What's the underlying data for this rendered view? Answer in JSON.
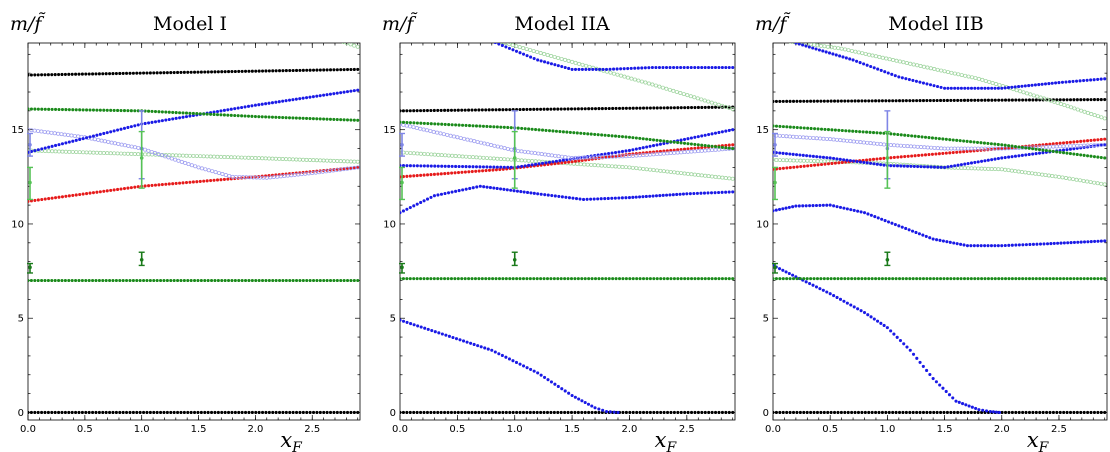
{
  "colors": {
    "black": "#000000",
    "green": "#1a8a1a",
    "blue": "#1a1ae6",
    "red": "#e61a1a",
    "purple": "#8a1a8a",
    "light_blue_open": "#9b9bf0",
    "light_green_open": "#9bd39b",
    "error_lightblue": "#7f86e6",
    "error_lightgreen": "#55c255",
    "error_darkgreen": "#1a7a1a"
  },
  "chart_data": [
    {
      "type": "scatter",
      "title": "Model I",
      "ylabel": "m/f̃",
      "xlabel": "x_F",
      "xlim": [
        0,
        2.92
      ],
      "ylim": [
        -0.4,
        19.6
      ],
      "xticks": [
        0.0,
        0.5,
        1.0,
        1.5,
        2.0,
        2.5
      ],
      "xtick_labels": [
        "0.0",
        "0.5",
        "1.0",
        "1.5",
        "2.0",
        "2.5"
      ],
      "yticks": [
        0,
        5,
        10,
        15
      ],
      "ytick_labels": [
        "0",
        "5",
        "10",
        "15"
      ],
      "series": [
        {
          "color": "black",
          "style": "filled",
          "x": [
            0,
            2.9
          ],
          "y": [
            0,
            0
          ]
        },
        {
          "color": "green",
          "style": "filled",
          "x": [
            0,
            2.9
          ],
          "y": [
            7.0,
            7.0
          ]
        },
        {
          "color": "red",
          "style": "filled",
          "x": [
            0,
            1.0,
            2.0,
            2.9
          ],
          "y": [
            11.2,
            12.0,
            12.5,
            13.0
          ]
        },
        {
          "color": "light_green_open",
          "style": "open",
          "x": [
            0,
            1.0,
            2.0,
            2.9
          ],
          "y": [
            13.9,
            13.7,
            13.5,
            13.3
          ]
        },
        {
          "color": "light_blue_open",
          "style": "open",
          "x": [
            0,
            0.5,
            1.0,
            1.5,
            1.8,
            2.1,
            2.5,
            2.9
          ],
          "y": [
            15.0,
            14.6,
            14.0,
            13.0,
            12.5,
            12.45,
            12.7,
            13.0
          ]
        },
        {
          "color": "blue",
          "style": "filled",
          "x": [
            0,
            1.0,
            2.0,
            2.9
          ],
          "y": [
            13.8,
            15.3,
            16.3,
            17.1
          ]
        },
        {
          "color": "green",
          "style": "filled",
          "x": [
            0,
            1.0,
            2.0,
            2.9
          ],
          "y": [
            16.1,
            16.0,
            15.7,
            15.5
          ]
        },
        {
          "color": "black",
          "style": "filled",
          "x": [
            0,
            2.9
          ],
          "y": [
            17.9,
            18.2
          ]
        },
        {
          "color": "light_green_open",
          "style": "open",
          "x": [
            2.65,
            2.9
          ],
          "y": [
            19.9,
            19.4
          ]
        }
      ],
      "error_bars": [
        {
          "x": 0.0,
          "y": 14.2,
          "lo": 13.6,
          "hi": 14.8,
          "color": "error_lightblue"
        },
        {
          "x": 0.0,
          "y": 12.2,
          "lo": 11.3,
          "hi": 13.0,
          "color": "error_lightgreen"
        },
        {
          "x": 0.0,
          "y": 7.7,
          "lo": 7.4,
          "hi": 7.9,
          "color": "error_darkgreen"
        },
        {
          "x": 1.0,
          "y": 14.0,
          "lo": 12.4,
          "hi": 16.0,
          "color": "error_lightblue"
        },
        {
          "x": 1.0,
          "y": 13.5,
          "lo": 11.9,
          "hi": 14.9,
          "color": "error_lightgreen"
        },
        {
          "x": 1.0,
          "y": 8.1,
          "lo": 7.8,
          "hi": 8.5,
          "color": "error_darkgreen"
        }
      ]
    },
    {
      "type": "scatter",
      "title": "Model IIA",
      "ylabel": "m/f̃",
      "xlabel": "x_F",
      "xlim": [
        0,
        2.92
      ],
      "ylim": [
        -0.4,
        19.6
      ],
      "xticks": [
        0.0,
        0.5,
        1.0,
        1.5,
        2.0,
        2.5
      ],
      "xtick_labels": [
        "0.0",
        "0.5",
        "1.0",
        "1.5",
        "2.0",
        "2.5"
      ],
      "yticks": [
        0,
        5,
        10,
        15
      ],
      "ytick_labels": [
        "0",
        "5",
        "10",
        "15"
      ],
      "series": [
        {
          "color": "black",
          "style": "filled",
          "x": [
            0,
            2.9
          ],
          "y": [
            0,
            0
          ]
        },
        {
          "color": "blue",
          "style": "filled",
          "x": [
            0,
            0.4,
            0.8,
            1.2,
            1.5,
            1.7,
            1.8,
            1.9
          ],
          "y": [
            4.9,
            4.1,
            3.3,
            2.1,
            0.9,
            0.25,
            0.05,
            0
          ]
        },
        {
          "color": "green",
          "style": "filled",
          "x": [
            0,
            2.9
          ],
          "y": [
            7.1,
            7.1
          ]
        },
        {
          "color": "blue",
          "style": "filled",
          "x": [
            0,
            0.3,
            0.7,
            1.2,
            1.6,
            2.0,
            2.5,
            2.9
          ],
          "y": [
            10.6,
            11.5,
            12.0,
            11.6,
            11.3,
            11.4,
            11.6,
            11.7
          ]
        },
        {
          "color": "light_green_open",
          "style": "open",
          "x": [
            0,
            1.0,
            2.0,
            2.9
          ],
          "y": [
            13.8,
            13.4,
            13.0,
            12.4
          ]
        },
        {
          "color": "red",
          "style": "filled",
          "x": [
            0,
            0.9,
            1.5,
            2.0,
            2.9
          ],
          "y": [
            12.5,
            12.9,
            13.3,
            13.7,
            14.2
          ]
        },
        {
          "color": "blue",
          "style": "filled",
          "x": [
            0,
            1.0,
            2.0,
            2.9
          ],
          "y": [
            13.1,
            13.0,
            13.9,
            15.0
          ]
        },
        {
          "color": "light_blue_open",
          "style": "open",
          "x": [
            0,
            0.5,
            1.0,
            1.5,
            2.0,
            2.9
          ],
          "y": [
            15.3,
            14.6,
            13.9,
            13.5,
            13.6,
            14.0
          ]
        },
        {
          "color": "green",
          "style": "filled",
          "x": [
            0,
            1.0,
            2.0,
            2.9
          ],
          "y": [
            15.4,
            15.1,
            14.6,
            14.0
          ]
        },
        {
          "color": "black",
          "style": "filled",
          "x": [
            0,
            2.9
          ],
          "y": [
            16.0,
            16.2
          ]
        },
        {
          "color": "light_green_open",
          "style": "open",
          "x": [
            0.8,
            1.5,
            2.2,
            2.9
          ],
          "y": [
            19.8,
            18.6,
            17.4,
            16.1
          ]
        },
        {
          "color": "blue",
          "style": "filled",
          "x": [
            0.8,
            1.2,
            1.5,
            1.8,
            2.2,
            2.6,
            2.9
          ],
          "y": [
            19.7,
            18.7,
            18.2,
            18.2,
            18.3,
            18.3,
            18.3
          ]
        }
      ],
      "error_bars": [
        {
          "x": 0.0,
          "y": 14.2,
          "lo": 13.6,
          "hi": 14.8,
          "color": "error_lightblue"
        },
        {
          "x": 0.0,
          "y": 12.2,
          "lo": 11.3,
          "hi": 13.0,
          "color": "error_lightgreen"
        },
        {
          "x": 0.0,
          "y": 7.7,
          "lo": 7.4,
          "hi": 7.9,
          "color": "error_darkgreen"
        },
        {
          "x": 1.0,
          "y": 14.0,
          "lo": 12.4,
          "hi": 16.0,
          "color": "error_lightblue"
        },
        {
          "x": 1.0,
          "y": 13.5,
          "lo": 11.9,
          "hi": 14.9,
          "color": "error_lightgreen"
        },
        {
          "x": 1.0,
          "y": 8.1,
          "lo": 7.8,
          "hi": 8.5,
          "color": "error_darkgreen"
        }
      ]
    },
    {
      "type": "scatter",
      "title": "Model IIB",
      "ylabel": "m/f̃",
      "xlabel": "x_F",
      "xlim": [
        0,
        2.92
      ],
      "ylim": [
        -0.4,
        19.6
      ],
      "xticks": [
        0.0,
        0.5,
        1.0,
        1.5,
        2.0,
        2.5
      ],
      "xtick_labels": [
        "0.0",
        "0.5",
        "1.0",
        "1.5",
        "2.0",
        "2.5"
      ],
      "yticks": [
        0,
        5,
        10,
        15
      ],
      "ytick_labels": [
        "0",
        "5",
        "10",
        "15"
      ],
      "series": [
        {
          "color": "black",
          "style": "filled",
          "x": [
            0,
            2.9
          ],
          "y": [
            0,
            0
          ]
        },
        {
          "color": "blue",
          "style": "filled",
          "x": [
            0.0,
            0.2,
            0.5,
            0.8,
            1.0,
            1.2,
            1.4,
            1.6,
            1.8,
            1.9,
            1.98
          ],
          "y": [
            7.8,
            7.2,
            6.3,
            5.3,
            4.5,
            3.3,
            1.8,
            0.6,
            0.15,
            0.05,
            0
          ]
        },
        {
          "color": "green",
          "style": "filled",
          "x": [
            0,
            2.9
          ],
          "y": [
            7.1,
            7.1
          ]
        },
        {
          "color": "blue",
          "style": "filled",
          "x": [
            0,
            0.2,
            0.5,
            0.8,
            1.1,
            1.4,
            1.7,
            2.0,
            2.4,
            2.9
          ],
          "y": [
            10.7,
            10.95,
            11.0,
            10.6,
            9.9,
            9.2,
            8.85,
            8.85,
            8.95,
            9.1
          ]
        },
        {
          "color": "light_green_open",
          "style": "open",
          "x": [
            0,
            0.6,
            1.0,
            1.5,
            2.0,
            2.5,
            2.9
          ],
          "y": [
            13.4,
            13.3,
            13.2,
            13.0,
            12.9,
            12.5,
            12.1
          ]
        },
        {
          "color": "red",
          "style": "filled",
          "x": [
            0,
            1.0,
            2.0,
            2.9
          ],
          "y": [
            12.9,
            13.5,
            14.0,
            14.5
          ]
        },
        {
          "color": "blue",
          "style": "filled",
          "x": [
            0,
            0.5,
            1.0,
            1.5,
            2.0,
            2.9
          ],
          "y": [
            13.8,
            13.5,
            13.1,
            13.0,
            13.5,
            14.2
          ]
        },
        {
          "color": "light_blue_open",
          "style": "open",
          "x": [
            0,
            0.5,
            1.0,
            1.5,
            2.0,
            2.9
          ],
          "y": [
            14.7,
            14.5,
            14.2,
            14.0,
            14.0,
            14.2
          ]
        },
        {
          "color": "green",
          "style": "filled",
          "x": [
            0,
            1.0,
            2.0,
            2.9
          ],
          "y": [
            15.2,
            14.8,
            14.2,
            13.5
          ]
        },
        {
          "color": "black",
          "style": "filled",
          "x": [
            0,
            2.9
          ],
          "y": [
            16.5,
            16.6
          ]
        },
        {
          "color": "light_green_open",
          "style": "open",
          "x": [
            0,
            0.6,
            1.2,
            1.8,
            2.4,
            2.9
          ],
          "y": [
            19.8,
            19.3,
            18.5,
            17.7,
            16.6,
            15.6
          ]
        },
        {
          "color": "blue",
          "style": "filled",
          "x": [
            0.2,
            0.7,
            1.1,
            1.5,
            2.0,
            2.5,
            2.9
          ],
          "y": [
            19.6,
            18.7,
            17.8,
            17.2,
            17.2,
            17.5,
            17.7
          ]
        }
      ],
      "error_bars": [
        {
          "x": 0.0,
          "y": 14.2,
          "lo": 13.6,
          "hi": 14.8,
          "color": "error_lightblue"
        },
        {
          "x": 0.0,
          "y": 12.2,
          "lo": 11.3,
          "hi": 13.0,
          "color": "error_lightgreen"
        },
        {
          "x": 0.0,
          "y": 7.7,
          "lo": 7.4,
          "hi": 7.9,
          "color": "error_darkgreen"
        },
        {
          "x": 1.0,
          "y": 14.0,
          "lo": 12.4,
          "hi": 16.0,
          "color": "error_lightblue"
        },
        {
          "x": 1.0,
          "y": 13.5,
          "lo": 11.9,
          "hi": 14.9,
          "color": "error_lightgreen"
        },
        {
          "x": 1.0,
          "y": 8.1,
          "lo": 7.8,
          "hi": 8.5,
          "color": "error_darkgreen"
        }
      ]
    }
  ]
}
